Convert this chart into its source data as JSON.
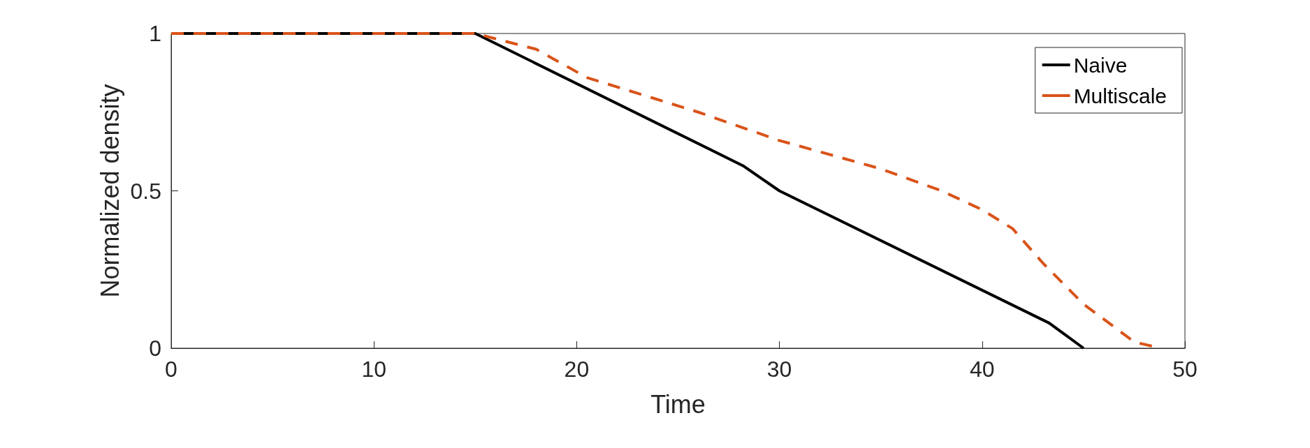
{
  "chart_data": {
    "type": "line",
    "xlabel": "Time",
    "ylabel": "Normalized density",
    "xlim": [
      0,
      50
    ],
    "ylim": [
      0,
      1
    ],
    "xticks": [
      0,
      10,
      20,
      30,
      40,
      50
    ],
    "yticks": [
      0,
      0.5,
      1
    ],
    "grid": false,
    "legend": "top right",
    "marker": "none",
    "series": [
      {
        "name": "Naive",
        "color": "#000000",
        "line_style": "solid",
        "x": [
          0,
          15,
          28.2,
          30,
          43.3,
          45
        ],
        "values": [
          1,
          1,
          0.58,
          0.5,
          0.08,
          0
        ]
      },
      {
        "name": "Multiscale",
        "color": "#d95319",
        "line_style": "dashed",
        "x": [
          0,
          15,
          18,
          20.5,
          23,
          26,
          30,
          35,
          38,
          40,
          41.5,
          43,
          45,
          47.5,
          48.8
        ],
        "values": [
          1,
          1,
          0.95,
          0.86,
          0.81,
          0.75,
          0.66,
          0.57,
          0.5,
          0.44,
          0.38,
          0.27,
          0.14,
          0.02,
          0
        ]
      }
    ]
  }
}
